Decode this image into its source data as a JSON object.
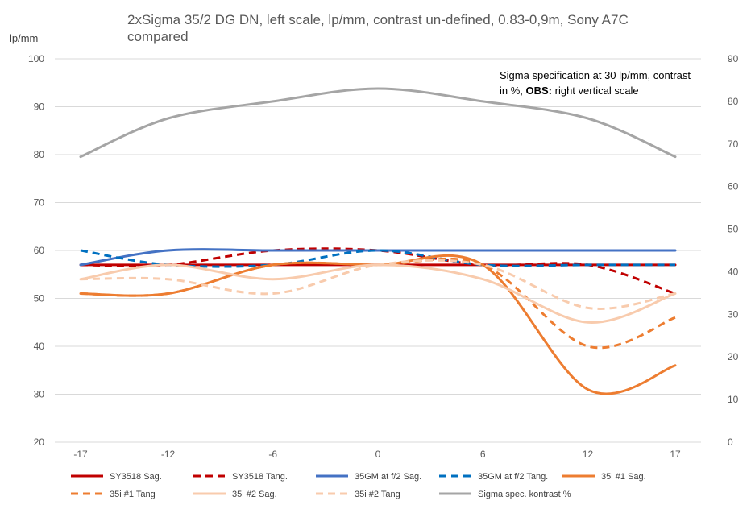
{
  "chart_data": {
    "type": "line",
    "title_line1": "2xSigma 35/2 DG DN, left scale, lp/mm, contrast un-defined, 0.83-0,9m, Sony A7C",
    "title_line2": "compared",
    "ylabel": "lp/mm",
    "annotation_line1": "Sigma specification at 30 lp/mm, contrast",
    "annotation_line2_prefix": "in %, ",
    "annotation_line2_bold": "OBS:",
    "annotation_line2_suffix": " right vertical scale",
    "x": [
      -17,
      -12,
      -6,
      0,
      6,
      12,
      17
    ],
    "x_tick_labels": [
      "-17",
      "-12",
      "-6",
      "0",
      "6",
      "12",
      "17"
    ],
    "y_left": {
      "min": 20,
      "max": 100,
      "step": 10,
      "tick_labels": [
        "20",
        "30",
        "40",
        "50",
        "60",
        "70",
        "80",
        "90",
        "100"
      ]
    },
    "y_right": {
      "min": 0,
      "max": 90,
      "step": 10,
      "tick_labels": [
        "0",
        "10",
        "20",
        "30",
        "40",
        "50",
        "60",
        "70",
        "80",
        "90"
      ]
    },
    "grid": "horizontal",
    "legend_position": "bottom",
    "series": [
      {
        "name": "SY3518 Sag.",
        "color": "#c00000",
        "dash": "solid",
        "axis": "left",
        "values": [
          57,
          57,
          57,
          57,
          57,
          57,
          57
        ]
      },
      {
        "name": "SY3518 Tang.",
        "color": "#c00000",
        "dash": "dashed",
        "axis": "left",
        "values": [
          57,
          57,
          60,
          60,
          57,
          57,
          51
        ]
      },
      {
        "name": "35GM at f/2 Sag.",
        "color": "#4472c4",
        "dash": "solid",
        "axis": "left",
        "values": [
          57,
          60,
          60,
          60,
          60,
          60,
          60
        ]
      },
      {
        "name": "35GM at f/2 Tang.",
        "color": "#0070c0",
        "dash": "dashed",
        "axis": "left",
        "values": [
          60,
          57,
          57,
          60,
          57,
          57,
          57
        ]
      },
      {
        "name": "35i #1 Sag.",
        "color": "#ed7d31",
        "dash": "solid",
        "axis": "left",
        "values": [
          51,
          51,
          57,
          57,
          57,
          31,
          36
        ]
      },
      {
        "name": "35i #1 Tang",
        "color": "#ed7d31",
        "dash": "dashed",
        "axis": "left",
        "values": [
          51,
          51,
          57,
          57,
          57,
          40,
          46
        ]
      },
      {
        "name": "35i #2 Sag.",
        "color": "#f8cbad",
        "dash": "solid",
        "axis": "left",
        "values": [
          54,
          57,
          54,
          57,
          54,
          45,
          51
        ]
      },
      {
        "name": "35i #2 Tang",
        "color": "#f8cbad",
        "dash": "dashed",
        "axis": "left",
        "values": [
          54,
          54,
          51,
          57,
          57,
          48,
          51
        ]
      },
      {
        "name": "Sigma spec. kontrast %",
        "color": "#a5a5a5",
        "dash": "solid",
        "axis": "right",
        "values": [
          67,
          76,
          80,
          83,
          80,
          76,
          67
        ]
      }
    ]
  }
}
